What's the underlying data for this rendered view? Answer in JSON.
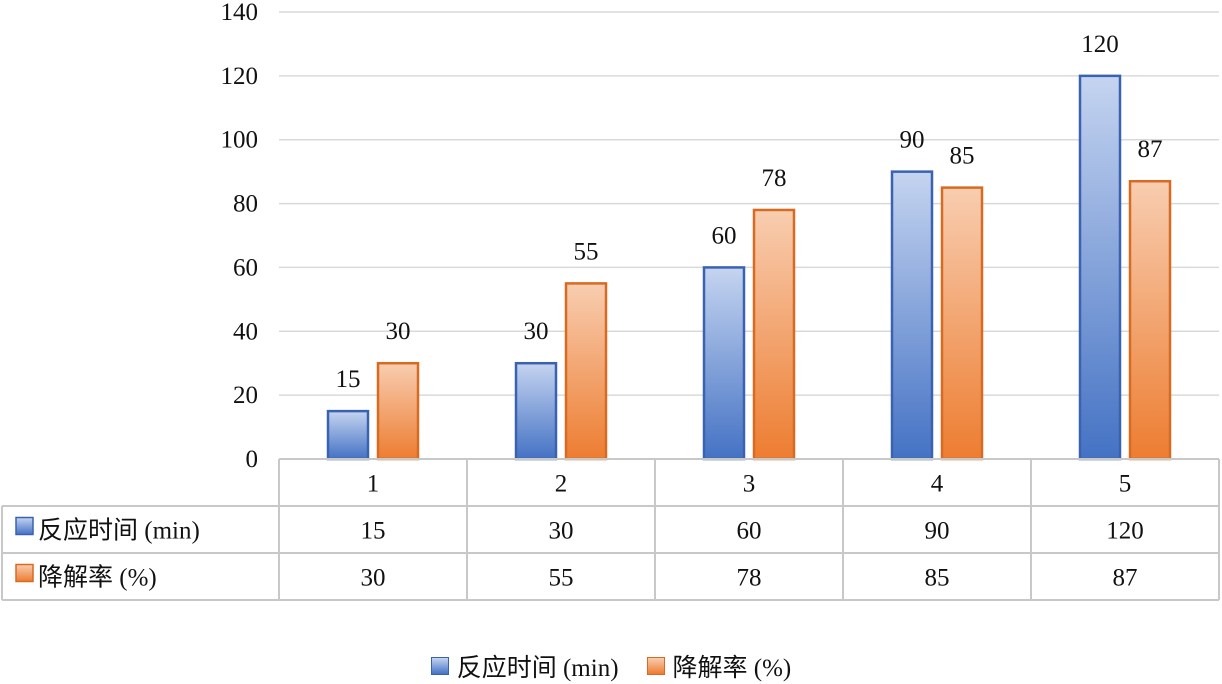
{
  "chart_data": {
    "type": "bar",
    "categories": [
      "1",
      "2",
      "3",
      "4",
      "5"
    ],
    "series": [
      {
        "name": "反应时间 (min)",
        "values": [
          15,
          30,
          60,
          90,
          120
        ]
      },
      {
        "name": "降解率 (%)",
        "values": [
          30,
          55,
          78,
          85,
          87
        ]
      }
    ],
    "ylim": [
      0,
      140
    ],
    "yticks": [
      0,
      20,
      40,
      60,
      80,
      100,
      120,
      140
    ],
    "grid": true,
    "data_table": true,
    "legend_position": "bottom",
    "colors": {
      "series1_top": "#c5d4f0",
      "series1_bottom": "#4472c4",
      "series1_edge": "#3a62b0",
      "series2_top": "#f8cdb0",
      "series2_bottom": "#ed7d31",
      "series2_edge": "#d86a22",
      "grid": "#d9d9d9",
      "table_border": "#c8c8c8"
    }
  }
}
